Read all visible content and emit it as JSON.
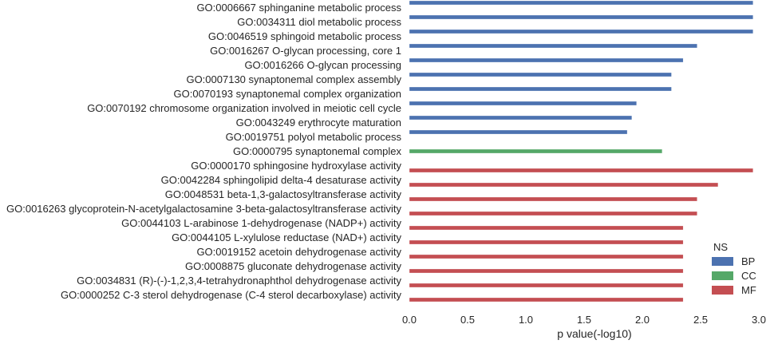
{
  "chart_data": {
    "type": "bar",
    "orientation": "horizontal",
    "categories": [
      "GO:0006667 sphinganine metabolic process",
      "GO:0034311 diol metabolic process",
      "GO:0046519 sphingoid metabolic process",
      "GO:0016267 O-glycan processing, core 1",
      "GO:0016266 O-glycan processing",
      "GO:0007130 synaptonemal complex assembly",
      "GO:0070193 synaptonemal complex organization",
      "GO:0070192 chromosome organization involved in meiotic cell cycle",
      "GO:0043249 erythrocyte maturation",
      "GO:0019751 polyol metabolic process",
      "GO:0000795 synaptonemal complex",
      "GO:0000170 sphingosine hydroxylase activity",
      "GO:0042284 sphingolipid delta-4 desaturase activity",
      "GO:0048531 beta-1,3-galactosyltransferase activity",
      "GO:0016263 glycoprotein-N-acetylgalactosamine 3-beta-galactosyltransferase activity",
      "GO:0044103 L-arabinose 1-dehydrogenase (NADP+) activity",
      "GO:0044105 L-xylulose reductase (NAD+) activity",
      "GO:0019152 acetoin dehydrogenase activity",
      "GO:0008875 gluconate dehydrogenase activity",
      "GO:0034831 (R)-(-)-1,2,3,4-tetrahydronaphthol dehydrogenase activity",
      "GO:0000252 C-3 sterol dehydrogenase (C-4 sterol decarboxylase) activity"
    ],
    "values": [
      2.95,
      2.95,
      2.95,
      2.47,
      2.35,
      2.25,
      2.25,
      1.95,
      1.91,
      1.87,
      2.17,
      2.95,
      2.65,
      2.47,
      2.47,
      2.35,
      2.35,
      2.35,
      2.35,
      2.35,
      2.35
    ],
    "groups": [
      "BP",
      "BP",
      "BP",
      "BP",
      "BP",
      "BP",
      "BP",
      "BP",
      "BP",
      "BP",
      "CC",
      "MF",
      "MF",
      "MF",
      "MF",
      "MF",
      "MF",
      "MF",
      "MF",
      "MF",
      "MF"
    ],
    "hue_order": [
      "BP",
      "CC",
      "MF"
    ],
    "colors": {
      "BP": "#4c72b0",
      "CC": "#55a868",
      "MF": "#c44e52"
    },
    "xlim": [
      0.0,
      3.0
    ],
    "xticks": [
      "0.0",
      "0.5",
      "1.0",
      "1.5",
      "2.0",
      "2.5",
      "3.0"
    ],
    "xlabel": "p value(-log10)",
    "ylabel": "",
    "grid": false,
    "legend": {
      "title": "NS",
      "placement": "bottom-right",
      "entries": [
        "BP",
        "CC",
        "MF"
      ]
    }
  }
}
